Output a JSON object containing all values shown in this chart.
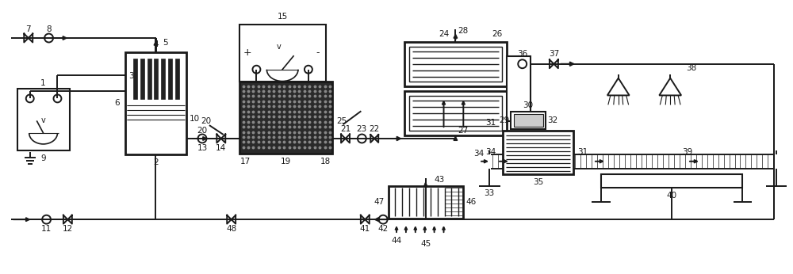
{
  "bg_color": "#ffffff",
  "line_color": "#1a1a1a",
  "figsize": [
    10.0,
    3.46
  ]
}
